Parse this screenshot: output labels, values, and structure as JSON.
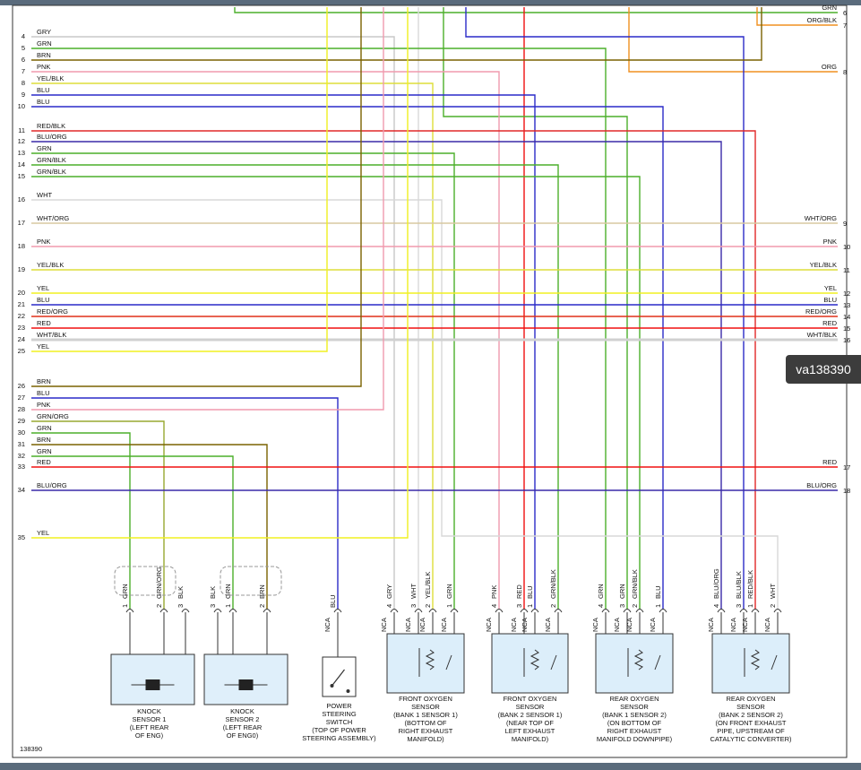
{
  "left_wires": [
    {
      "number": "4",
      "label": "GRY",
      "color": "#c8c8c8"
    },
    {
      "number": "5",
      "label": "GRN",
      "color": "#4caf2a"
    },
    {
      "number": "6",
      "label": "BRN",
      "color": "#7a6200"
    },
    {
      "number": "7",
      "label": "PNK",
      "color": "#f09aae"
    },
    {
      "number": "8",
      "label": "YEL/BLK",
      "color": "#dede3a"
    },
    {
      "number": "9",
      "label": "BLU",
      "color": "#2a2ac8"
    },
    {
      "number": "10",
      "label": "BLU",
      "color": "#2a2ac8"
    },
    {
      "number": "11",
      "label": "RED/BLK",
      "color": "#e02828"
    },
    {
      "number": "12",
      "label": "BLU/ORG",
      "color": "#3a2aa8"
    },
    {
      "number": "13",
      "label": "GRN",
      "color": "#4caf2a"
    },
    {
      "number": "14",
      "label": "GRN/BLK",
      "color": "#4caf2a"
    },
    {
      "number": "15",
      "label": "GRN/BLK",
      "color": "#4caf2a"
    },
    {
      "number": "16",
      "label": "WHT",
      "color": "#d8d8d8"
    },
    {
      "number": "17",
      "label": "WHT/ORG",
      "color": "#d8c8a0"
    },
    {
      "number": "18",
      "label": "PNK",
      "color": "#f09aae"
    },
    {
      "number": "19",
      "label": "YEL/BLK",
      "color": "#dede3a"
    },
    {
      "number": "20",
      "label": "YEL",
      "color": "#f0f020"
    },
    {
      "number": "21",
      "label": "BLU",
      "color": "#2a2ac8"
    },
    {
      "number": "22",
      "label": "RED/ORG",
      "color": "#e03018"
    },
    {
      "number": "23",
      "label": "RED",
      "color": "#f01010"
    },
    {
      "number": "24",
      "label": "WHT/BLK",
      "color": "#d0d0d0"
    },
    {
      "number": "25",
      "label": "YEL",
      "color": "#f0f020"
    },
    {
      "number": "26",
      "label": "BRN",
      "color": "#7a6200"
    },
    {
      "number": "27",
      "label": "BLU",
      "color": "#2a2ac8"
    },
    {
      "number": "28",
      "label": "PNK",
      "color": "#f09aae"
    },
    {
      "number": "29",
      "label": "GRN/ORG",
      "color": "#98a830"
    },
    {
      "number": "30",
      "label": "GRN",
      "color": "#4caf2a"
    },
    {
      "number": "31",
      "label": "BRN",
      "color": "#7a6200"
    },
    {
      "number": "32",
      "label": "GRN",
      "color": "#4caf2a"
    },
    {
      "number": "33",
      "label": "RED",
      "color": "#f01010"
    },
    {
      "number": "34",
      "label": "BLU/ORG",
      "color": "#3a2aa8"
    },
    {
      "number": "35",
      "label": "YEL",
      "color": "#f0f020"
    }
  ],
  "right_wires": [
    {
      "number": "6",
      "label": "GRN"
    },
    {
      "number": "7",
      "label": "ORG/BLK"
    },
    {
      "number": "8",
      "label": "ORG"
    },
    {
      "number": "9",
      "label": "WHT/ORG"
    },
    {
      "number": "10",
      "label": "PNK"
    },
    {
      "number": "11",
      "label": "YEL/BLK"
    },
    {
      "number": "12",
      "label": "YEL"
    },
    {
      "number": "13",
      "label": "BLU"
    },
    {
      "number": "14",
      "label": "RED/ORG"
    },
    {
      "number": "15",
      "label": "RED"
    },
    {
      "number": "16",
      "label": "WHT/BLK"
    },
    {
      "number": "17",
      "label": "RED"
    },
    {
      "number": "18",
      "label": "BLU/ORG"
    }
  ],
  "components": [
    {
      "pins": [
        {
          "number": "1",
          "wire": "GRN"
        },
        {
          "number": "2",
          "wire": "GRN/ORG"
        },
        {
          "number": "3",
          "wire": "BLK"
        }
      ],
      "name": [
        "KNOCK",
        "SENSOR 1",
        "(LEFT REAR",
        "OF ENG)"
      ]
    },
    {
      "pins": [
        {
          "number": "3",
          "wire": "BLK"
        },
        {
          "number": "1",
          "wire": "GRN"
        },
        {
          "number": "2",
          "wire": "BRN"
        }
      ],
      "name": [
        "KNOCK",
        "SENSOR 2",
        "(LEFT REAR",
        "OF ENG0)"
      ]
    },
    {
      "pins": [
        {
          "wire": "BLU",
          "nca": "NCA"
        }
      ],
      "name": [
        "POWER",
        "STEERING",
        "SWITCH",
        "(TOP OF POWER",
        "STEERING ASSEMBLY)"
      ]
    },
    {
      "pins": [
        {
          "number": "4",
          "wire": "GRY",
          "nca": "NCA"
        },
        {
          "number": "3",
          "wire": "WHT",
          "nca": "NCA"
        },
        {
          "number": "2",
          "wire": "YEL/BLK",
          "nca": "NCA"
        },
        {
          "number": "1",
          "wire": "GRN",
          "nca": "NCA"
        }
      ],
      "name": [
        "FRONT OXYGEN",
        "SENSOR",
        "(BANK 1 SENSOR 1)",
        "(BOTTOM OF",
        "RIGHT EXHAUST",
        "MANIFOLD)"
      ]
    },
    {
      "pins": [
        {
          "number": "4",
          "wire": "PNK",
          "nca": "NCA"
        },
        {
          "number": "3",
          "wire": "RED",
          "nca": "NCA"
        },
        {
          "number": "1",
          "wire": "BLU",
          "nca": "NCA"
        },
        {
          "number": "2",
          "wire": "GRN/BLK",
          "nca": "NCA"
        }
      ],
      "name": [
        "FRONT OXYGEN",
        "SENSOR",
        "(BANK 2 SENSOR 1)",
        "(NEAR TOP OF",
        "LEFT EXHAUST",
        "MANIFOLD)"
      ]
    },
    {
      "pins": [
        {
          "number": "4",
          "wire": "GRN",
          "nca": "NCA"
        },
        {
          "number": "3",
          "wire": "GRN",
          "nca": "NCA"
        },
        {
          "number": "2",
          "wire": "GRN/BLK",
          "nca": "NCA"
        },
        {
          "number": "1",
          "wire": "BLU",
          "nca": "NCA"
        }
      ],
      "name": [
        "REAR OXYGEN",
        "SENSOR",
        "(BANK 1 SENSOR 2)",
        "(ON BOTTOM OF",
        "RIGHT EXHAUST",
        "MANIFOLD DOWNPIPE)"
      ]
    },
    {
      "pins": [
        {
          "number": "4",
          "wire": "BLU/ORG",
          "nca": "NCA"
        },
        {
          "number": "3",
          "wire": "BLU/BLK",
          "nca": "NCA"
        },
        {
          "number": "1",
          "wire": "RED/BLK",
          "nca": "NCA"
        },
        {
          "number": "2",
          "wire": "WHT",
          "nca": "NCA"
        }
      ],
      "name": [
        "REAR OXYGEN",
        "SENSOR",
        "(BANK 2 SENSOR 2)",
        "(ON FRONT EXHAUST",
        "PIPE, UPSTREAM OF",
        "CATALYTIC CONVERTER)"
      ]
    }
  ],
  "footer": "138390",
  "badge": "va138390"
}
